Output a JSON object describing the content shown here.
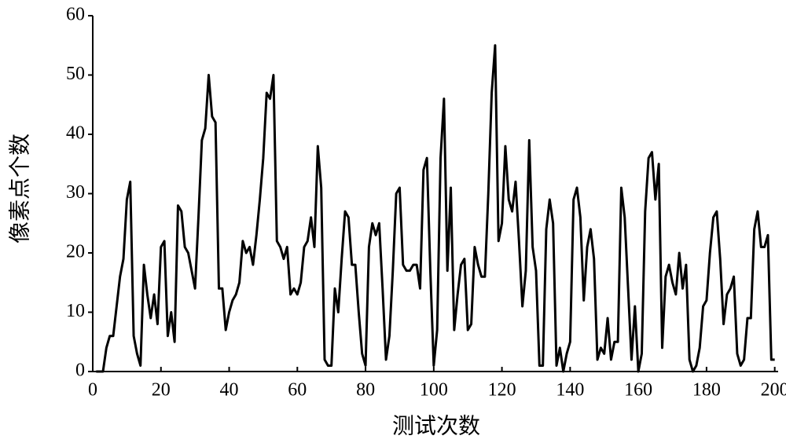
{
  "chart_data": {
    "type": "line",
    "xlabel": "测试次数",
    "ylabel": "像素点个数",
    "xlim": [
      0,
      201
    ],
    "ylim": [
      0,
      60
    ],
    "xticks": [
      0,
      20,
      40,
      60,
      80,
      100,
      120,
      140,
      160,
      180,
      200
    ],
    "yticks": [
      0,
      10,
      20,
      30,
      40,
      50,
      60
    ],
    "x": [
      1,
      2,
      3,
      4,
      5,
      6,
      7,
      8,
      9,
      10,
      11,
      12,
      13,
      14,
      15,
      16,
      17,
      18,
      19,
      20,
      21,
      22,
      23,
      24,
      25,
      26,
      27,
      28,
      29,
      30,
      31,
      32,
      33,
      34,
      35,
      36,
      37,
      38,
      39,
      40,
      41,
      42,
      43,
      44,
      45,
      46,
      47,
      48,
      49,
      50,
      51,
      52,
      53,
      54,
      55,
      56,
      57,
      58,
      59,
      60,
      61,
      62,
      63,
      64,
      65,
      66,
      67,
      68,
      69,
      70,
      71,
      72,
      73,
      74,
      75,
      76,
      77,
      78,
      79,
      80,
      81,
      82,
      83,
      84,
      85,
      86,
      87,
      88,
      89,
      90,
      91,
      92,
      93,
      94,
      95,
      96,
      97,
      98,
      99,
      100,
      101,
      102,
      103,
      104,
      105,
      106,
      107,
      108,
      109,
      110,
      111,
      112,
      113,
      114,
      115,
      116,
      117,
      118,
      119,
      120,
      121,
      122,
      123,
      124,
      125,
      126,
      127,
      128,
      129,
      130,
      131,
      132,
      133,
      134,
      135,
      136,
      137,
      138,
      139,
      140,
      141,
      142,
      143,
      144,
      145,
      146,
      147,
      148,
      149,
      150,
      151,
      152,
      153,
      154,
      155,
      156,
      157,
      158,
      159,
      160,
      161,
      162,
      163,
      164,
      165,
      166,
      167,
      168,
      169,
      170,
      171,
      172,
      173,
      174,
      175,
      176,
      177,
      178,
      179,
      180,
      181,
      182,
      183,
      184,
      185,
      186,
      187,
      188,
      189,
      190,
      191,
      192,
      193,
      194,
      195,
      196,
      197,
      198,
      199,
      200
    ],
    "series": [
      {
        "color": "#000000",
        "values": [
          0,
          0,
          0,
          4,
          6,
          6,
          11,
          16,
          19,
          29,
          32,
          6,
          3,
          1,
          18,
          13,
          9,
          13,
          8,
          21,
          22,
          6,
          10,
          5,
          28,
          27,
          21,
          20,
          17,
          14,
          26,
          39,
          41,
          50,
          43,
          42,
          14,
          14,
          7,
          10,
          12,
          13,
          15,
          22,
          20,
          21,
          18,
          23,
          29,
          36,
          47,
          46,
          50,
          22,
          21,
          19,
          21,
          13,
          14,
          13,
          15,
          21,
          22,
          26,
          21,
          38,
          31,
          2,
          1,
          1,
          14,
          10,
          19,
          27,
          26,
          18,
          18,
          10,
          3,
          1,
          21,
          25,
          23,
          25,
          14,
          2,
          6,
          17,
          30,
          31,
          18,
          17,
          17,
          18,
          18,
          14,
          34,
          36,
          17,
          1,
          7,
          36,
          46,
          17,
          31,
          7,
          13,
          18,
          19,
          7,
          8,
          21,
          18,
          16,
          16,
          30,
          47,
          55,
          22,
          25,
          38,
          29,
          27,
          32,
          22,
          11,
          17,
          39,
          21,
          17,
          1,
          1,
          24,
          29,
          25,
          1,
          4,
          0,
          3,
          5,
          29,
          31,
          26,
          12,
          21,
          24,
          19,
          2,
          4,
          3,
          9,
          2,
          5,
          5,
          31,
          26,
          14,
          2,
          11,
          0,
          3,
          27,
          36,
          37,
          29,
          35,
          4,
          16,
          18,
          15,
          13,
          20,
          14,
          18,
          2,
          0,
          1,
          4,
          11,
          12,
          20,
          26,
          27,
          19,
          8,
          13,
          14,
          16,
          3,
          1,
          2,
          9,
          9,
          24,
          27,
          21,
          21,
          23,
          2,
          2
        ]
      }
    ]
  }
}
